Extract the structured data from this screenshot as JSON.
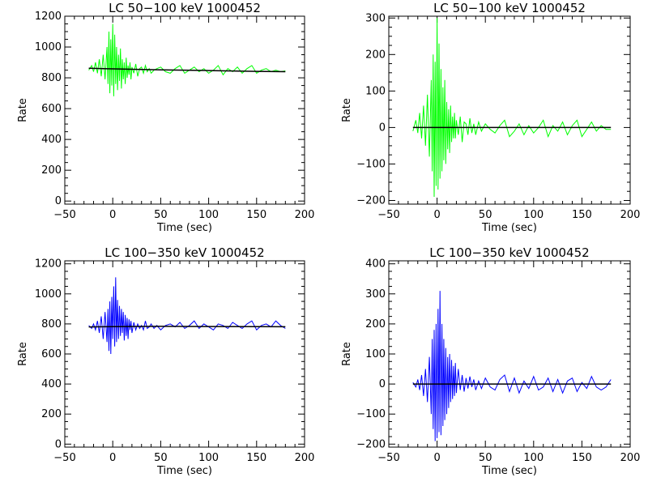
{
  "chart_data": [
    {
      "type": "line",
      "title": "LC 50−100 keV  1000452",
      "xlabel": "Time (sec)",
      "ylabel": "Rate",
      "xlim": [
        -50,
        200
      ],
      "ylim": [
        -20,
        1200
      ],
      "xticks": [
        "−50",
        "0",
        "50",
        "100",
        "150",
        "200"
      ],
      "yticks": [
        "0",
        "200",
        "400",
        "600",
        "800",
        "1000",
        "1200"
      ],
      "xtick_values": [
        -50,
        0,
        50,
        100,
        150,
        200
      ],
      "ytick_values": [
        0,
        200,
        400,
        600,
        800,
        1000,
        1200
      ],
      "series": [
        {
          "color": "#00ff00",
          "style": "light-curve",
          "x": [
            -25,
            -22,
            -20,
            -18,
            -16,
            -14,
            -12,
            -10,
            -8,
            -6,
            -5,
            -4,
            -3,
            -2,
            -1,
            0,
            1,
            2,
            3,
            4,
            5,
            6,
            7,
            8,
            9,
            10,
            11,
            12,
            13,
            14,
            15,
            16,
            17,
            18,
            19,
            20,
            22,
            24,
            26,
            28,
            30,
            32,
            34,
            36,
            38,
            40,
            43,
            46,
            50,
            55,
            60,
            65,
            70,
            75,
            80,
            85,
            90,
            95,
            100,
            105,
            110,
            115,
            120,
            125,
            130,
            135,
            140,
            145,
            150,
            155,
            160,
            165,
            170,
            175,
            180
          ],
          "y": [
            850,
            880,
            840,
            900,
            830,
            920,
            810,
            950,
            790,
            1000,
            760,
            1100,
            700,
            1050,
            750,
            1150,
            680,
            1080,
            760,
            1000,
            720,
            950,
            780,
            990,
            730,
            920,
            790,
            900,
            760,
            930,
            800,
            880,
            820,
            900,
            790,
            870,
            830,
            890,
            810,
            860,
            870,
            830,
            880,
            840,
            860,
            830,
            850,
            860,
            870,
            840,
            830,
            860,
            880,
            830,
            850,
            870,
            840,
            860,
            830,
            850,
            880,
            820,
            860,
            840,
            870,
            830,
            860,
            880,
            830,
            850,
            860,
            840,
            850,
            840,
            845
          ]
        },
        {
          "color": "#000000",
          "style": "model",
          "x": [
            -25,
            0,
            50,
            100,
            150,
            180
          ],
          "y": [
            862,
            858,
            852,
            847,
            842,
            840
          ]
        }
      ]
    },
    {
      "type": "line",
      "title": "LC 50−100 keV  1000452",
      "xlabel": "Time (sec)",
      "ylabel": "Rate",
      "xlim": [
        -50,
        200
      ],
      "ylim": [
        -210,
        305
      ],
      "xticks": [
        "−50",
        "0",
        "50",
        "100",
        "150",
        "200"
      ],
      "yticks": [
        "−200",
        "−100",
        "0",
        "100",
        "200",
        "300"
      ],
      "xtick_values": [
        -50,
        0,
        50,
        100,
        150,
        200
      ],
      "ytick_values": [
        -200,
        -100,
        0,
        100,
        200,
        300
      ],
      "series": [
        {
          "color": "#00ff00",
          "style": "residual",
          "x": [
            -25,
            -22,
            -20,
            -18,
            -16,
            -14,
            -12,
            -10,
            -8,
            -6,
            -5,
            -4,
            -3,
            -2,
            -1,
            0,
            1,
            2,
            3,
            4,
            5,
            6,
            7,
            8,
            9,
            10,
            11,
            12,
            13,
            14,
            15,
            16,
            17,
            18,
            19,
            20,
            22,
            24,
            26,
            28,
            30,
            32,
            34,
            36,
            38,
            40,
            43,
            46,
            50,
            55,
            60,
            65,
            70,
            75,
            80,
            85,
            90,
            95,
            100,
            105,
            110,
            115,
            120,
            125,
            130,
            135,
            140,
            145,
            150,
            155,
            160,
            165,
            170,
            175,
            180
          ],
          "y": [
            -10,
            20,
            -15,
            40,
            -30,
            60,
            -50,
            90,
            -80,
            130,
            -120,
            200,
            -190,
            180,
            -160,
            300,
            -170,
            230,
            -140,
            160,
            -120,
            110,
            -90,
            130,
            -100,
            70,
            -60,
            50,
            -70,
            60,
            -40,
            30,
            -30,
            40,
            -30,
            20,
            -20,
            30,
            -40,
            15,
            10,
            -20,
            25,
            -15,
            10,
            -20,
            15,
            -10,
            10,
            -5,
            -15,
            5,
            20,
            -25,
            -10,
            10,
            -20,
            5,
            -15,
            0,
            20,
            -25,
            5,
            -10,
            15,
            -20,
            5,
            20,
            -25,
            -5,
            15,
            -10,
            5,
            -5,
            -5
          ]
        },
        {
          "color": "#000000",
          "style": "model",
          "x": [
            -25,
            180
          ],
          "y": [
            0,
            0
          ]
        }
      ]
    },
    {
      "type": "line",
      "title": "LC 100−350 keV  1000452",
      "xlabel": "Time (sec)",
      "ylabel": "Rate",
      "xlim": [
        -50,
        200
      ],
      "ylim": [
        -20,
        1220
      ],
      "xticks": [
        "−50",
        "0",
        "50",
        "100",
        "150",
        "200"
      ],
      "yticks": [
        "0",
        "200",
        "400",
        "600",
        "800",
        "1000",
        "1200"
      ],
      "xtick_values": [
        -50,
        0,
        50,
        100,
        150,
        200
      ],
      "ytick_values": [
        0,
        200,
        400,
        600,
        800,
        1000,
        1200
      ],
      "series": [
        {
          "color": "#0000ff",
          "style": "light-curve",
          "x": [
            -25,
            -22,
            -20,
            -18,
            -16,
            -14,
            -12,
            -10,
            -8,
            -6,
            -5,
            -4,
            -3,
            -2,
            -1,
            0,
            1,
            2,
            3,
            4,
            5,
            6,
            7,
            8,
            9,
            10,
            11,
            12,
            13,
            14,
            15,
            16,
            17,
            18,
            19,
            20,
            22,
            24,
            26,
            28,
            30,
            32,
            34,
            36,
            38,
            40,
            43,
            46,
            50,
            55,
            60,
            65,
            70,
            75,
            80,
            85,
            90,
            95,
            100,
            105,
            110,
            115,
            120,
            125,
            130,
            135,
            140,
            145,
            150,
            155,
            160,
            165,
            170,
            175,
            180
          ],
          "y": [
            790,
            770,
            800,
            760,
            820,
            740,
            850,
            700,
            880,
            680,
            900,
            620,
            950,
            600,
            980,
            700,
            1050,
            650,
            1110,
            680,
            960,
            700,
            920,
            720,
            900,
            740,
            880,
            690,
            860,
            720,
            840,
            700,
            830,
            760,
            820,
            740,
            810,
            760,
            800,
            770,
            790,
            760,
            820,
            770,
            780,
            800,
            770,
            790,
            760,
            790,
            800,
            780,
            810,
            770,
            790,
            820,
            770,
            800,
            780,
            760,
            800,
            790,
            770,
            810,
            790,
            770,
            800,
            820,
            760,
            790,
            800,
            780,
            820,
            790,
            770
          ]
        },
        {
          "color": "#000000",
          "style": "model",
          "x": [
            -25,
            0,
            50,
            100,
            150,
            180
          ],
          "y": [
            780,
            782,
            784,
            783,
            782,
            781
          ]
        }
      ]
    },
    {
      "type": "line",
      "title": "LC 100−350 keV  1000452",
      "xlabel": "Time (sec)",
      "ylabel": "Rate",
      "xlim": [
        -50,
        200
      ],
      "ylim": [
        -210,
        410
      ],
      "xticks": [
        "−50",
        "0",
        "50",
        "100",
        "150",
        "200"
      ],
      "yticks": [
        "−200",
        "−100",
        "0",
        "100",
        "200",
        "300",
        "400"
      ],
      "xtick_values": [
        -50,
        0,
        50,
        100,
        150,
        200
      ],
      "ytick_values": [
        -200,
        -100,
        0,
        100,
        200,
        300,
        400
      ],
      "series": [
        {
          "color": "#0000ff",
          "style": "residual",
          "x": [
            -25,
            -22,
            -20,
            -18,
            -16,
            -14,
            -12,
            -10,
            -8,
            -6,
            -5,
            -4,
            -3,
            -2,
            -1,
            0,
            1,
            2,
            3,
            4,
            5,
            6,
            7,
            8,
            9,
            10,
            11,
            12,
            13,
            14,
            15,
            16,
            17,
            18,
            19,
            20,
            22,
            24,
            26,
            28,
            30,
            32,
            34,
            36,
            38,
            40,
            43,
            46,
            50,
            55,
            60,
            65,
            70,
            75,
            80,
            85,
            90,
            95,
            100,
            105,
            110,
            115,
            120,
            125,
            130,
            135,
            140,
            145,
            150,
            155,
            160,
            165,
            170,
            175,
            180
          ],
          "y": [
            5,
            -10,
            15,
            -20,
            30,
            -40,
            50,
            -60,
            90,
            -100,
            150,
            -150,
            180,
            -190,
            200,
            -180,
            250,
            -160,
            310,
            -170,
            200,
            -140,
            150,
            -120,
            120,
            -100,
            90,
            -80,
            100,
            -60,
            80,
            -50,
            60,
            -40,
            70,
            -30,
            50,
            -20,
            30,
            -25,
            20,
            -15,
            25,
            -10,
            15,
            -20,
            10,
            -15,
            20,
            -10,
            -20,
            15,
            30,
            -25,
            20,
            -30,
            10,
            -15,
            25,
            -20,
            -10,
            20,
            -25,
            15,
            -30,
            10,
            20,
            -25,
            5,
            -15,
            25,
            -10,
            -20,
            -10,
            15
          ]
        },
        {
          "color": "#000000",
          "style": "model",
          "x": [
            -25,
            180
          ],
          "y": [
            0,
            0
          ]
        }
      ]
    }
  ]
}
